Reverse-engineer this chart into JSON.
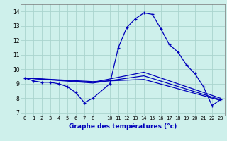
{
  "xlabel": "Graphe des températures (°c)",
  "background_color": "#cef0eb",
  "grid_color": "#aad4ce",
  "line_color": "#0000bb",
  "xlim": [
    -0.5,
    23.5
  ],
  "ylim": [
    6.8,
    14.5
  ],
  "yticks": [
    7,
    8,
    9,
    10,
    11,
    12,
    13,
    14
  ],
  "xticks": [
    0,
    1,
    2,
    3,
    4,
    5,
    6,
    7,
    8,
    10,
    11,
    12,
    13,
    14,
    15,
    16,
    17,
    18,
    19,
    20,
    21,
    22,
    23
  ],
  "main_series": {
    "x": [
      0,
      1,
      2,
      3,
      4,
      5,
      6,
      7,
      8,
      10,
      11,
      12,
      13,
      14,
      15,
      16,
      17,
      18,
      19,
      20,
      21,
      22,
      23
    ],
    "y": [
      9.4,
      9.2,
      9.1,
      9.1,
      9.0,
      8.8,
      8.4,
      7.7,
      8.0,
      9.0,
      11.5,
      12.9,
      13.5,
      13.9,
      13.8,
      12.8,
      11.7,
      11.2,
      10.3,
      9.7,
      8.8,
      7.5,
      7.9
    ]
  },
  "extra_lines": [
    {
      "x": [
        0,
        8,
        14,
        23
      ],
      "y": [
        9.4,
        9.1,
        9.8,
        8.0
      ]
    },
    {
      "x": [
        0,
        8,
        14,
        23
      ],
      "y": [
        9.4,
        9.05,
        9.55,
        7.9
      ]
    },
    {
      "x": [
        0,
        8,
        14,
        23
      ],
      "y": [
        9.4,
        9.15,
        9.3,
        7.85
      ]
    }
  ]
}
